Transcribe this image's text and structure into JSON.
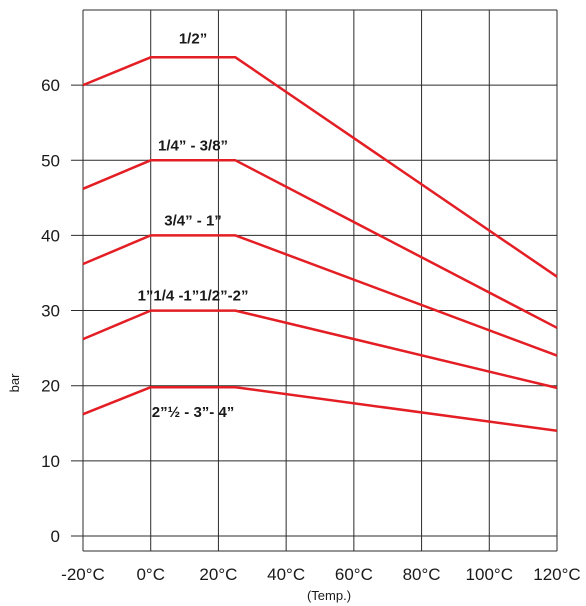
{
  "chart_data": {
    "type": "line",
    "title": "",
    "xlabel": "(Temp.)",
    "ylabel": "bar",
    "x_ticks": [
      "-20°C",
      "0°C",
      "20°C",
      "40°C",
      "60°C",
      "80°C",
      "100°C",
      "120°C"
    ],
    "x_tick_values": [
      -20,
      0,
      20,
      40,
      60,
      80,
      100,
      120
    ],
    "y_ticks": [
      "0",
      "10",
      "20",
      "30",
      "40",
      "50",
      "60"
    ],
    "y_tick_values": [
      0,
      10,
      20,
      30,
      40,
      50,
      60
    ],
    "xlim": [
      -20,
      120
    ],
    "ylim": [
      -2,
      70
    ],
    "grid": true,
    "line_color": "#e31e24",
    "series": [
      {
        "name": "1/2”",
        "x": [
          -20,
          0,
          25,
          120
        ],
        "y": [
          60,
          63.7,
          63.7,
          34.5
        ]
      },
      {
        "name": "1/4” - 3/8”",
        "x": [
          -20,
          0,
          25,
          120
        ],
        "y": [
          46.2,
          50,
          50,
          27.7
        ]
      },
      {
        "name": "3/4” - 1”",
        "x": [
          -20,
          0,
          25,
          120
        ],
        "y": [
          36.2,
          40,
          40,
          24
        ]
      },
      {
        "name": "1”1/4 -1”1/2”-2”",
        "x": [
          -20,
          0,
          25,
          120
        ],
        "y": [
          26.2,
          30,
          30,
          19.7
        ]
      },
      {
        "name": "2”½ - 3”- 4”",
        "x": [
          -20,
          0,
          25,
          120
        ],
        "y": [
          16.2,
          19.8,
          19.8,
          14
        ]
      }
    ]
  }
}
